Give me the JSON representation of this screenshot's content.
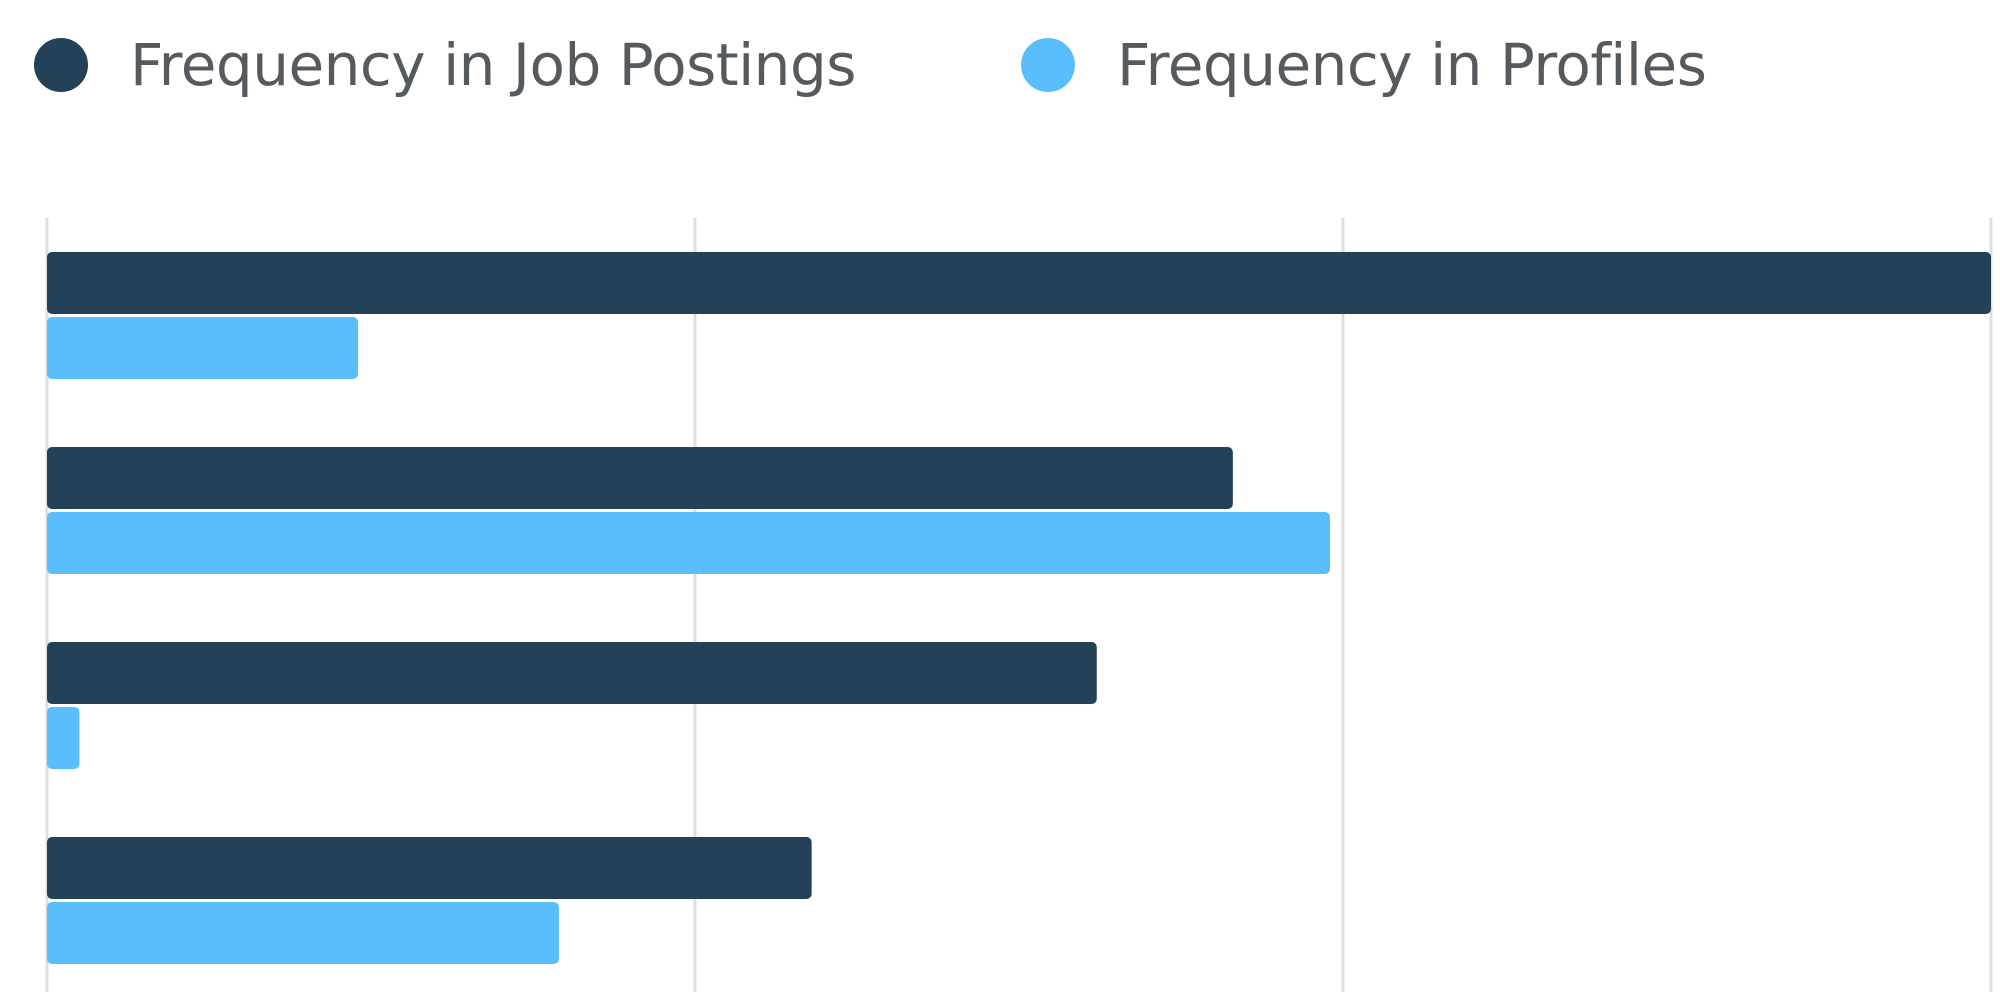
{
  "chart_data": {
    "type": "bar",
    "orientation": "horizontal",
    "categories": [
      "",
      "",
      "",
      ""
    ],
    "series": [
      {
        "name": "Frequency in Job Postings",
        "color": "#234257",
        "values": [
          3.0,
          1.83,
          1.62,
          1.18
        ]
      },
      {
        "name": "Frequency in Profiles",
        "color": "#5bbefc",
        "values": [
          0.48,
          1.98,
          0.05,
          0.79
        ]
      }
    ],
    "xlim": [
      0,
      3.0
    ],
    "x_gridlines": [
      0,
      1,
      2,
      3
    ],
    "grid": true,
    "legend_position": "top-left",
    "title": "",
    "xlabel": "",
    "ylabel": ""
  }
}
